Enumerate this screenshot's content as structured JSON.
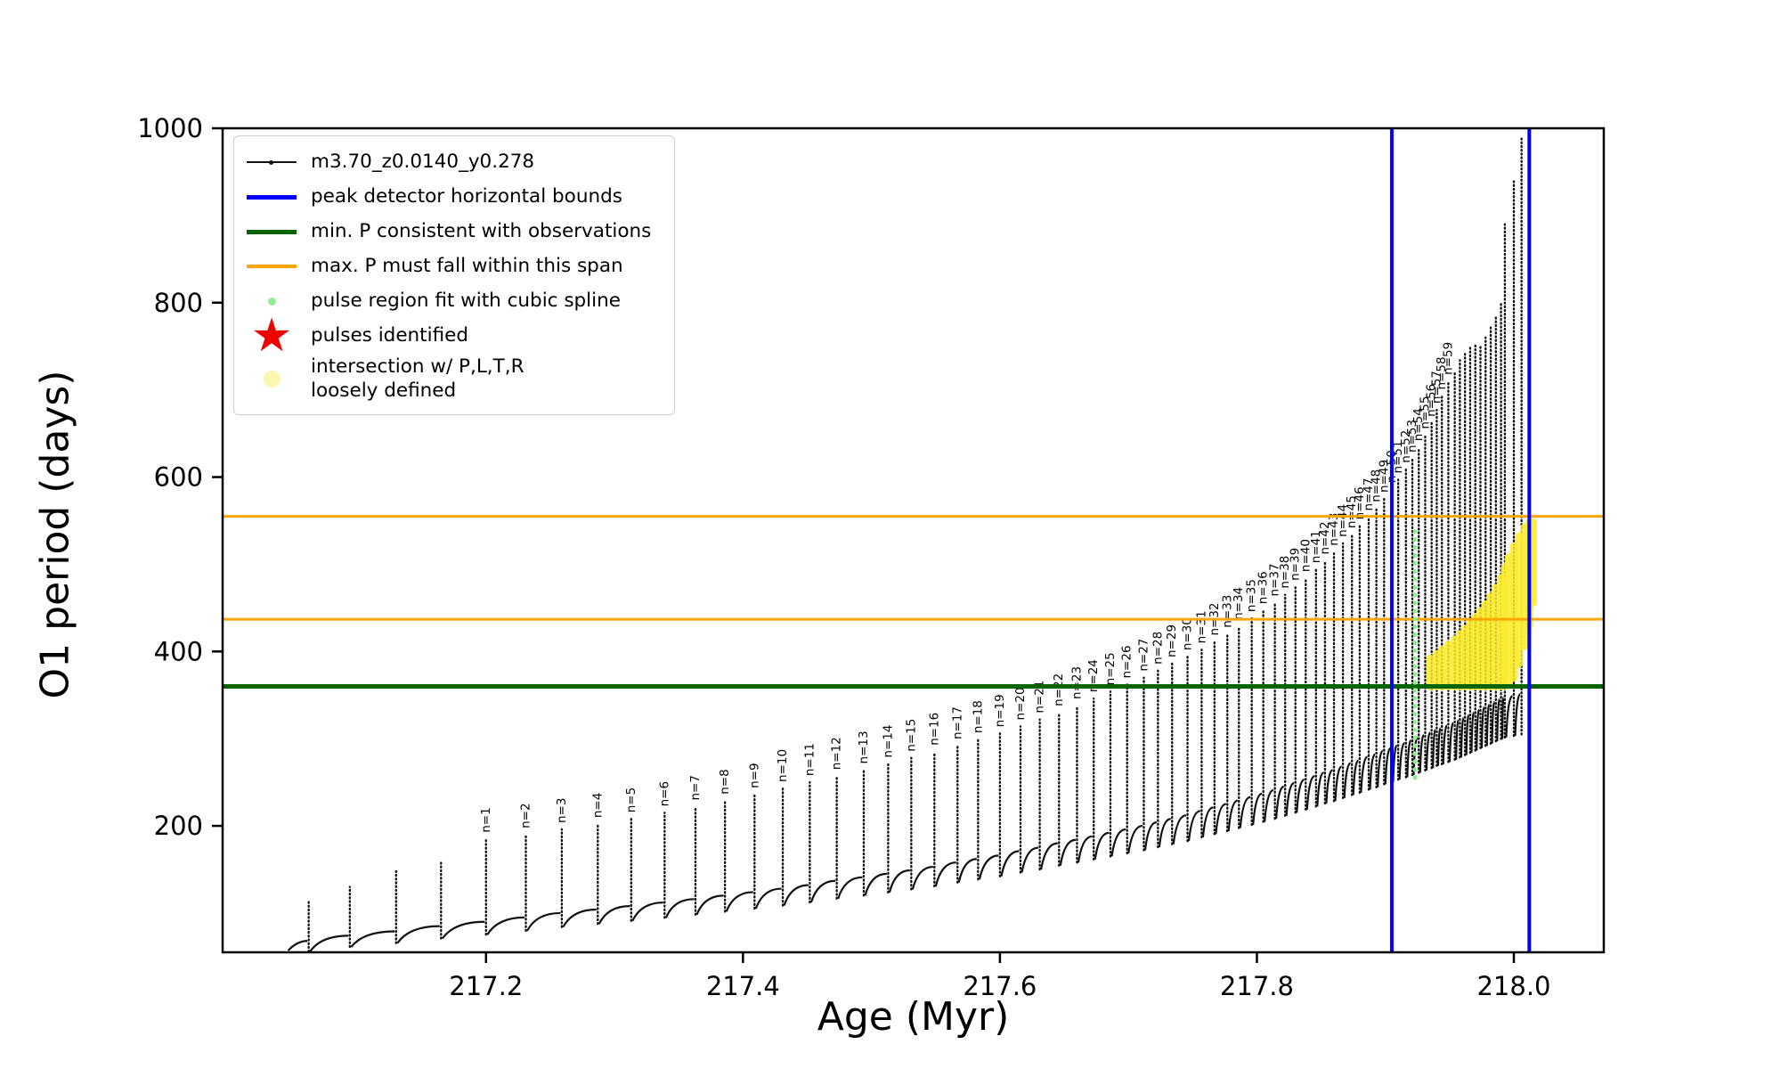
{
  "chart_data": {
    "type": "line",
    "title": "",
    "xlabel": "Age (Myr)",
    "ylabel": "O1 period (days)",
    "xlim": [
      216.995,
      218.07
    ],
    "ylim": [
      55,
      1000
    ],
    "x_ticks": [
      217.2,
      217.4,
      217.6,
      217.8,
      218.0
    ],
    "x_tick_labels": [
      "217.2",
      "217.4",
      "217.6",
      "217.8",
      "218.0"
    ],
    "y_ticks": [
      200,
      400,
      600,
      800,
      1000
    ],
    "series_label": "m3.70_z0.0140_y0.278",
    "series_color": "#111111",
    "pulses": {
      "x": [
        217.062,
        217.094,
        217.13,
        217.165,
        217.2,
        217.231,
        217.259,
        217.287,
        217.313,
        217.339,
        217.363,
        217.386,
        217.409,
        217.431,
        217.452,
        217.473,
        217.494,
        217.513,
        217.531,
        217.549,
        217.567,
        217.583,
        217.6,
        217.616,
        217.631,
        217.646,
        217.66,
        217.673,
        217.686,
        217.699,
        217.712,
        217.723,
        217.734,
        217.746,
        217.757,
        217.767,
        217.777,
        217.786,
        217.796,
        217.805,
        217.814,
        217.822,
        217.83,
        217.838,
        217.846,
        217.853,
        217.86,
        217.867,
        217.874,
        217.88,
        217.887,
        217.893,
        217.899,
        217.905,
        217.91,
        217.916,
        217.921,
        217.926,
        217.931,
        217.936,
        217.94,
        217.944,
        217.949,
        217.954,
        217.958,
        217.962,
        217.966,
        217.97,
        217.974,
        217.978,
        217.982,
        217.986,
        217.99,
        217.993,
        218.0,
        218.006
      ],
      "peak": [
        115,
        130,
        150,
        160,
        185,
        190,
        196,
        202,
        208,
        215,
        222,
        229,
        236,
        243,
        250,
        257,
        264,
        271,
        278,
        285,
        292,
        299,
        306,
        314,
        322,
        330,
        338,
        346,
        354,
        362,
        370,
        378,
        386,
        394,
        402,
        411,
        420,
        429,
        438,
        447,
        456,
        465,
        474,
        484,
        494,
        504,
        514,
        524,
        534,
        544,
        554,
        564,
        575,
        586,
        597,
        609,
        621,
        634,
        648,
        662,
        677,
        693,
        710,
        722,
        734,
        744,
        750,
        752,
        750,
        760,
        772,
        786,
        800,
        890,
        940,
        990
      ],
      "base": [
        68,
        74,
        79,
        85,
        90,
        95,
        100,
        104,
        108,
        112,
        116,
        120,
        124,
        128,
        132,
        137,
        141,
        145,
        149,
        153,
        158,
        162,
        166,
        171,
        175,
        180,
        184,
        188,
        192,
        196,
        200,
        204,
        208,
        212,
        217,
        221,
        225,
        229,
        233,
        237,
        241,
        245,
        249,
        253,
        257,
        261,
        264,
        268,
        272,
        275,
        279,
        282,
        286,
        289,
        292,
        295,
        298,
        301,
        304,
        307,
        310,
        312,
        315,
        318,
        321,
        324,
        327,
        330,
        333,
        336,
        339,
        342,
        345,
        347,
        349,
        351
      ],
      "labels": [
        "",
        "",
        "",
        "",
        "n=1",
        "n=2",
        "n=3",
        "n=4",
        "n=5",
        "n=6",
        "n=7",
        "n=8",
        "n=9",
        "n=10",
        "n=11",
        "n=12",
        "n=13",
        "n=14",
        "n=15",
        "n=16",
        "n=17",
        "n=18",
        "n=19",
        "n=20",
        "n=21",
        "n=22",
        "n=23",
        "n=24",
        "n=25",
        "n=26",
        "n=27",
        "n=28",
        "n=29",
        "n=30",
        "n=31",
        "n=32",
        "n=33",
        "n=34",
        "n=35",
        "n=36",
        "n=37",
        "n=38",
        "n=39",
        "n=40",
        "n=41",
        "n=42",
        "n=43",
        "n=44",
        "n=45",
        "n=46",
        "n=47",
        "n=48",
        "n=49",
        "n=50",
        "n=51",
        "n=52",
        "n=53",
        "n=54",
        "n=55",
        "n=56",
        "n=57",
        "n=58",
        "n=59",
        "",
        "",
        "",
        "",
        "",
        "",
        "",
        "",
        "",
        "",
        "",
        "",
        ""
      ]
    },
    "vlines": {
      "color": "#0000ff",
      "x": [
        217.905,
        218.012
      ]
    },
    "hlines": [
      {
        "y": 360,
        "color": "#006400",
        "width": 5,
        "name": "min-period-line"
      },
      {
        "y": 555,
        "color": "#ffa500",
        "width": 3,
        "name": "max-period-upper-line"
      },
      {
        "y": 437,
        "color": "#ffa500",
        "width": 3,
        "name": "max-period-lower-line"
      }
    ],
    "spline_fit": {
      "x": 217.923,
      "y1": 255,
      "y2": 540,
      "color": "#90ee90"
    },
    "intersection_color": "#fced2e",
    "intersection_strips": [
      [
        217.935,
        360,
        392
      ],
      [
        217.94,
        360,
        397
      ],
      [
        217.944,
        360,
        402
      ],
      [
        217.949,
        360,
        408
      ],
      [
        217.954,
        360,
        414
      ],
      [
        217.958,
        360,
        420
      ],
      [
        217.962,
        360,
        426
      ],
      [
        217.966,
        360,
        432
      ],
      [
        217.97,
        360,
        439
      ],
      [
        217.974,
        360,
        446
      ],
      [
        217.978,
        360,
        454
      ],
      [
        217.982,
        360,
        463
      ],
      [
        217.986,
        360,
        473
      ],
      [
        217.99,
        360,
        484
      ],
      [
        217.993,
        361,
        496
      ],
      [
        217.996,
        364,
        508
      ],
      [
        218.0,
        370,
        520
      ],
      [
        218.004,
        386,
        532
      ],
      [
        218.008,
        406,
        542
      ],
      [
        218.012,
        430,
        548
      ],
      [
        218.015,
        456,
        548
      ]
    ]
  },
  "legend": {
    "items": [
      {
        "label": "m3.70_z0.0140_y0.278",
        "marker": "black-line-dot"
      },
      {
        "label": "peak detector horizontal bounds",
        "marker": "blue-line"
      },
      {
        "label": "min. P consistent with observations",
        "marker": "green-line"
      },
      {
        "label": "max. P must fall within this span",
        "marker": "orange-line"
      },
      {
        "label": "pulse region fit with cubic spline",
        "marker": "lightgreen-dot"
      },
      {
        "label": "pulses identified",
        "marker": "red-star"
      },
      {
        "label": "intersection w/ P,L,T,R\nloosely defined",
        "marker": "yellow-dot"
      }
    ]
  }
}
